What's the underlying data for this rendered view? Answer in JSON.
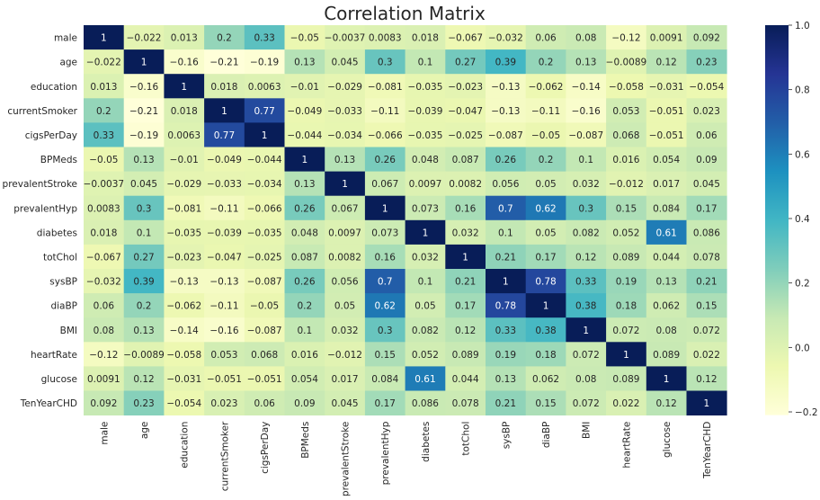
{
  "chart_data": {
    "type": "heatmap",
    "title": "Correlation Matrix",
    "variables": [
      "male",
      "age",
      "education",
      "currentSmoker",
      "cigsPerDay",
      "BPMeds",
      "prevalentStroke",
      "prevalentHyp",
      "diabetes",
      "totChol",
      "sysBP",
      "diaBP",
      "BMI",
      "heartRate",
      "glucose",
      "TenYearCHD"
    ],
    "matrix": [
      [
        1,
        -0.022,
        0.013,
        0.2,
        0.33,
        -0.05,
        -0.0037,
        0.0083,
        0.018,
        -0.067,
        -0.032,
        0.06,
        0.08,
        -0.12,
        0.0091,
        0.092
      ],
      [
        -0.022,
        1,
        -0.16,
        -0.21,
        -0.19,
        0.13,
        0.045,
        0.3,
        0.1,
        0.27,
        0.39,
        0.2,
        0.13,
        -0.0089,
        0.12,
        0.23
      ],
      [
        0.013,
        -0.16,
        1,
        0.018,
        0.0063,
        -0.01,
        -0.029,
        -0.081,
        -0.035,
        -0.023,
        -0.13,
        -0.062,
        -0.14,
        -0.058,
        -0.031,
        -0.054
      ],
      [
        0.2,
        -0.21,
        0.018,
        1,
        0.77,
        -0.049,
        -0.033,
        -0.11,
        -0.039,
        -0.047,
        -0.13,
        -0.11,
        -0.16,
        0.053,
        -0.051,
        0.023
      ],
      [
        0.33,
        -0.19,
        0.0063,
        0.77,
        1,
        -0.044,
        -0.034,
        -0.066,
        -0.035,
        -0.025,
        -0.087,
        -0.05,
        -0.087,
        0.068,
        -0.051,
        0.06
      ],
      [
        -0.05,
        0.13,
        -0.01,
        -0.049,
        -0.044,
        1,
        0.13,
        0.26,
        0.048,
        0.087,
        0.26,
        0.2,
        0.1,
        0.016,
        0.054,
        0.09
      ],
      [
        -0.0037,
        0.045,
        -0.029,
        -0.033,
        -0.034,
        0.13,
        1,
        0.067,
        0.0097,
        0.0082,
        0.056,
        0.05,
        0.032,
        -0.012,
        0.017,
        0.045
      ],
      [
        0.0083,
        0.3,
        -0.081,
        -0.11,
        -0.066,
        0.26,
        0.067,
        1,
        0.073,
        0.16,
        0.7,
        0.62,
        0.3,
        0.15,
        0.084,
        0.17
      ],
      [
        0.018,
        0.1,
        -0.035,
        -0.039,
        -0.035,
        0.048,
        0.0097,
        0.073,
        1,
        0.032,
        0.1,
        0.05,
        0.082,
        0.052,
        0.61,
        0.086
      ],
      [
        -0.067,
        0.27,
        -0.023,
        -0.047,
        -0.025,
        0.087,
        0.0082,
        0.16,
        0.032,
        1,
        0.21,
        0.17,
        0.12,
        0.089,
        0.044,
        0.078
      ],
      [
        -0.032,
        0.39,
        -0.13,
        -0.13,
        -0.087,
        0.26,
        0.056,
        0.7,
        0.1,
        0.21,
        1,
        0.78,
        0.33,
        0.19,
        0.13,
        0.21
      ],
      [
        0.06,
        0.2,
        -0.062,
        -0.11,
        -0.05,
        0.2,
        0.05,
        0.62,
        0.05,
        0.17,
        0.78,
        1,
        0.38,
        0.18,
        0.062,
        0.15
      ],
      [
        0.08,
        0.13,
        -0.14,
        -0.16,
        -0.087,
        0.1,
        0.032,
        0.3,
        0.082,
        0.12,
        0.33,
        0.38,
        1,
        0.072,
        0.08,
        0.072
      ],
      [
        -0.12,
        -0.0089,
        -0.058,
        0.053,
        0.068,
        0.016,
        -0.012,
        0.15,
        0.052,
        0.089,
        0.19,
        0.18,
        0.072,
        1,
        0.089,
        0.022
      ],
      [
        0.0091,
        0.12,
        -0.031,
        -0.051,
        -0.051,
        0.054,
        0.017,
        0.084,
        0.61,
        0.044,
        0.13,
        0.062,
        0.08,
        0.089,
        1,
        0.12
      ],
      [
        0.092,
        0.23,
        -0.054,
        0.023,
        0.06,
        0.09,
        0.045,
        0.17,
        0.086,
        0.078,
        0.21,
        0.15,
        0.072,
        0.022,
        0.12,
        1
      ]
    ],
    "colormap": "YlGnBu",
    "vmin": -0.21,
    "vmax": 1,
    "annotations": true,
    "colorbar_ticks": [
      -0.2,
      0.0,
      0.2,
      0.4,
      0.6,
      0.8,
      1.0
    ],
    "colorbar_tick_labels": [
      "−0.2",
      "0.0",
      "0.2",
      "0.4",
      "0.6",
      "0.8",
      "1.0"
    ]
  }
}
